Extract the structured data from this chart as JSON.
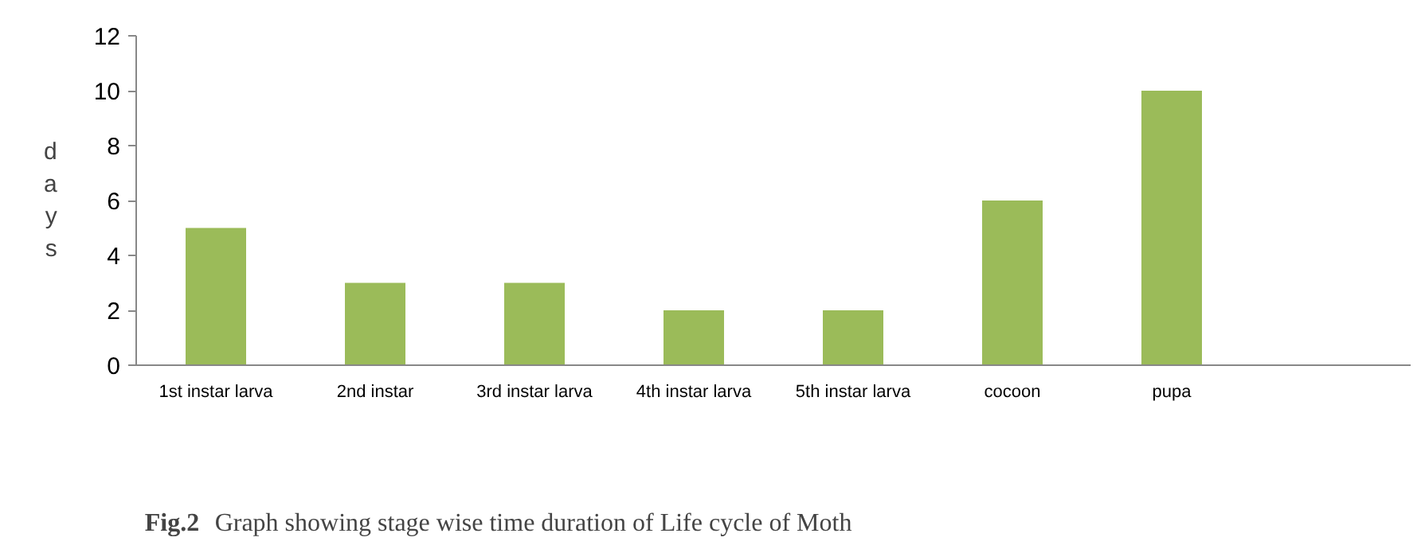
{
  "chart_data": {
    "type": "bar",
    "ylabel": "days",
    "categories": [
      "1st instar larva",
      "2nd instar",
      "3rd instar larva",
      "4th instar larva",
      "5th instar larva",
      "cocoon",
      "pupa",
      null
    ],
    "values": [
      5,
      3,
      3,
      2,
      2,
      6,
      10,
      null
    ],
    "color": "#9bbb59",
    "ylim": [
      0,
      12
    ],
    "yticks": [
      0,
      2,
      4,
      6,
      8,
      10,
      12
    ],
    "grid": false,
    "annotations": [
      "Fig.2 Graph showing stage wise time duration of Life cycle of Moth"
    ]
  }
}
